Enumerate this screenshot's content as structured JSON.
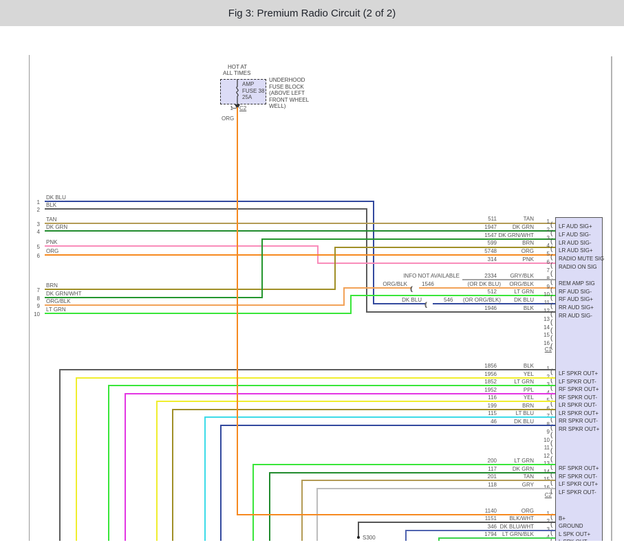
{
  "title": "Fig 3: Premium Radio Circuit (2 of 2)",
  "fuse_block": {
    "hot_label": [
      "HOT AT",
      "ALL TIMES"
    ],
    "fuse_lines": [
      "AMP",
      "FUSE 38",
      "25A"
    ],
    "location_lines": [
      "UNDERHOOD",
      "FUSE BLOCK",
      "(ABOVE LEFT",
      "FRONT WHEEL",
      "WELL)"
    ],
    "pin": "1",
    "connector": "C2",
    "wire_label": "ORG"
  },
  "left_connector": {
    "pins": [
      {
        "pin": "1",
        "color": "DK BLU"
      },
      {
        "pin": "2",
        "color": "BLK"
      },
      {
        "pin": "3",
        "color": "TAN"
      },
      {
        "pin": "4",
        "color": "DK GRN"
      },
      {
        "pin": "5",
        "color": "PNK"
      },
      {
        "pin": "6",
        "color": "ORG"
      },
      {
        "pin": "7",
        "color": "BRN"
      },
      {
        "pin": "8",
        "color": "DK GRN/WHT"
      },
      {
        "pin": "9",
        "color": "ORG/BLK"
      },
      {
        "pin": "10",
        "color": "LT GRN"
      }
    ]
  },
  "radio_connector_c1": {
    "label": "C1",
    "pins": [
      {
        "pin": "1",
        "circuit": "511",
        "color": "TAN",
        "signal": "LF AUD SIG+"
      },
      {
        "pin": "2",
        "circuit": "1947",
        "color": "DK GRN",
        "signal": "LF AUD SIG-"
      },
      {
        "pin": "3",
        "circuit": "1547",
        "color": "DK GRN/WHT",
        "signal": "LR AUD SIG-"
      },
      {
        "pin": "4",
        "circuit": "599",
        "color": "BRN",
        "signal": "LR AUD SIG+"
      },
      {
        "pin": "5",
        "circuit": "5748",
        "color": "ORG",
        "signal": "RADIO MUTE SIG"
      },
      {
        "pin": "6",
        "circuit": "314",
        "color": "PNK",
        "signal": "RADIO ON SIG"
      },
      {
        "pin": "7"
      },
      {
        "pin": "8",
        "circuit": "2334",
        "color": "GRY/BLK",
        "signal": "REM AMP SIG",
        "note": "INFO NOT AVAILABLE"
      },
      {
        "pin": "9",
        "circuit": "1546",
        "alt": "(OR DK BLU)",
        "color": "ORG/BLK",
        "signal": "RF AUD SIG-",
        "splice_label": "ORG/BLK"
      },
      {
        "pin": "10",
        "circuit": "512",
        "color": "LT GRN",
        "signal": "RF AUD SIG+"
      },
      {
        "pin": "11",
        "circuit": "546",
        "alt": "(OR ORG/BLK)",
        "color": "DK BLU",
        "signal": "RR AUD SIG+",
        "splice_label": "DK BLU"
      },
      {
        "pin": "12",
        "circuit": "1946",
        "color": "BLK",
        "signal": "RR AUD SIG-"
      },
      {
        "pin": "13"
      },
      {
        "pin": "14"
      },
      {
        "pin": "15"
      },
      {
        "pin": "16"
      }
    ]
  },
  "radio_connector_c2": {
    "label": "C2",
    "pins": [
      {
        "pin": "1",
        "circuit": "1856",
        "color": "BLK",
        "signal": "LF SPKR OUT+"
      },
      {
        "pin": "2",
        "circuit": "1956",
        "color": "YEL",
        "signal": "LF SPKR OUT-"
      },
      {
        "pin": "3",
        "circuit": "1852",
        "color": "LT GRN",
        "signal": "RF SPKR OUT+"
      },
      {
        "pin": "4",
        "circuit": "1952",
        "color": "PPL",
        "signal": "RF SPKR OUT-"
      },
      {
        "pin": "5",
        "circuit": "116",
        "color": "YEL",
        "signal": "LR SPKR OUT-"
      },
      {
        "pin": "6",
        "circuit": "199",
        "color": "BRN",
        "signal": "LR SPKR OUT+"
      },
      {
        "pin": "7",
        "circuit": "115",
        "color": "LT BLU",
        "signal": "RR SPKR OUT-"
      },
      {
        "pin": "8",
        "circuit": "46",
        "color": "DK BLU",
        "signal": "RR SPKR OUT+"
      },
      {
        "pin": "9"
      },
      {
        "pin": "10"
      },
      {
        "pin": "11"
      },
      {
        "pin": "12"
      },
      {
        "pin": "13",
        "circuit": "200",
        "color": "LT GRN",
        "signal": "RF SPKR OUT+"
      },
      {
        "pin": "14",
        "circuit": "117",
        "color": "DK GRN",
        "signal": "RF SPKR OUT-"
      },
      {
        "pin": "15",
        "circuit": "201",
        "color": "TAN",
        "signal": "LF SPKR OUT+"
      },
      {
        "pin": "16",
        "circuit": "118",
        "color": "GRY",
        "signal": "LF SPKR OUT-"
      }
    ]
  },
  "bottom_connector": {
    "pins": [
      {
        "pin": "1",
        "circuit": "1140",
        "color": "ORG",
        "signal": "B+"
      },
      {
        "pin": "2",
        "circuit": "1151",
        "color": "BLK/WHT",
        "signal": "GROUND"
      },
      {
        "pin": "3",
        "circuit": "346",
        "color": "DK BLU/WHT",
        "signal": "L SPK OUT+"
      },
      {
        "pin": "4",
        "circuit": "1794",
        "color": "LT GRN/BLK",
        "signal": "L SPK OUT-"
      }
    ]
  },
  "splice": {
    "label": "S300"
  },
  "wire_colors": {
    "DK BLU": "#33499e",
    "BLK": "#5c5c5c",
    "TAN": "#b39b55",
    "DK GRN": "#218b2d",
    "PNK": "#f98cba",
    "ORG": "#f6891f",
    "BRN": "#a08f27",
    "DK GRN/WHT": "#24962e",
    "ORG/BLK": "#f2a258",
    "LT GRN": "#39e639",
    "GRY/BLK": "#a3a3a3",
    "YEL": "#f0ee2e",
    "PPL": "#e336e3",
    "LT BLU": "#3cdbe8",
    "GRY": "#bdbdbd",
    "BLK/WHT": "#555555",
    "DK BLU/WHT": "#5064b0",
    "LT GRN/BLK": "#3bd34b"
  }
}
